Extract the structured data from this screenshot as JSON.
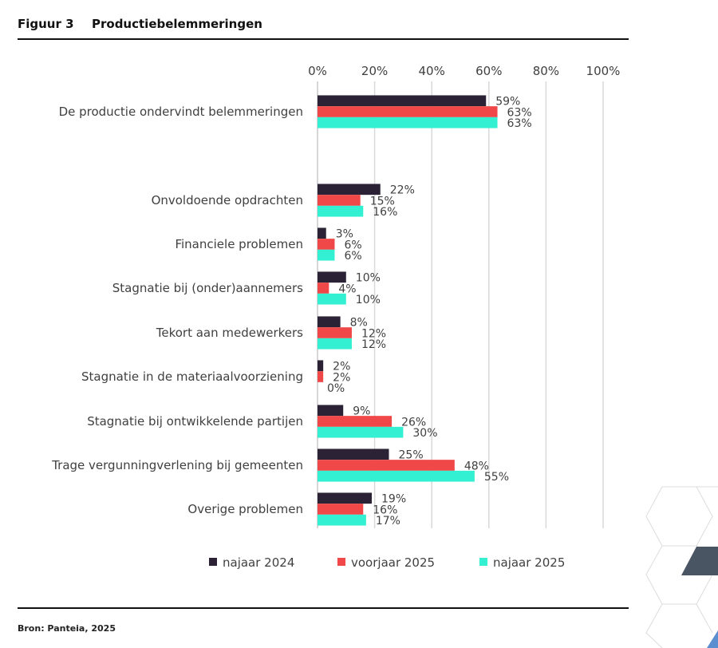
{
  "figure": {
    "number": "Figuur 3",
    "title": "Productiebelemmeringen",
    "source": "Bron: Panteia, 2025"
  },
  "chart_data": {
    "type": "bar",
    "orientation": "horizontal",
    "title": "Productiebelemmeringen",
    "xlim": [
      0,
      100
    ],
    "xticks": [
      "0%",
      "20%",
      "40%",
      "60%",
      "80%",
      "100%"
    ],
    "grid": true,
    "legend_position": "bottom",
    "categories": [
      "De productie ondervindt belemmeringen",
      "Onvoldoende opdrachten",
      "Financiele problemen",
      "Stagnatie bij (onder)aannemers",
      "Tekort aan medewerkers",
      "Stagnatie in de materiaalvoorziening",
      "Stagnatie bij ontwikkelende partijen",
      "Trage vergunningverlening bij gemeenten",
      "Overige problemen"
    ],
    "series": [
      {
        "name": "najaar 2024",
        "color": "#2b2335",
        "values": [
          59,
          22,
          3,
          10,
          8,
          2,
          9,
          25,
          19
        ]
      },
      {
        "name": "voorjaar 2025",
        "color": "#f04848",
        "values": [
          63,
          15,
          6,
          4,
          12,
          2,
          26,
          48,
          16
        ]
      },
      {
        "name": "najaar 2025",
        "color": "#33f0d2",
        "values": [
          63,
          16,
          6,
          10,
          12,
          0,
          30,
          55,
          17
        ]
      }
    ]
  }
}
